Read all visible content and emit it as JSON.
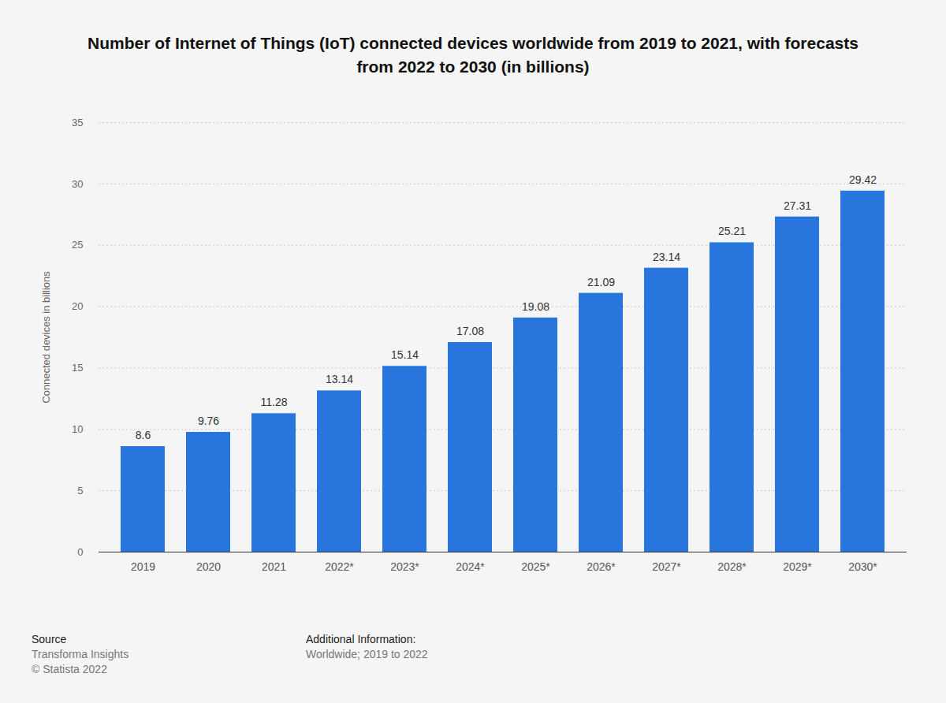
{
  "chart_data": {
    "type": "bar",
    "title": "Number of Internet of Things (IoT) connected devices worldwide from 2019 to 2021, with forecasts from 2022 to 2030 (in billions)",
    "y_label": "Connected devices in billions",
    "categories": [
      "2019",
      "2020",
      "2021",
      "2022*",
      "2023*",
      "2024*",
      "2025*",
      "2026*",
      "2027*",
      "2028*",
      "2029*",
      "2030*"
    ],
    "values": [
      8.6,
      9.76,
      11.28,
      13.14,
      15.14,
      17.08,
      19.08,
      21.09,
      23.14,
      25.21,
      27.31,
      29.42
    ],
    "color": "#2876dd",
    "ylim": [
      0,
      35
    ],
    "yticks": [
      0,
      5,
      10,
      15,
      20,
      25,
      30,
      35
    ],
    "grid": true,
    "data_labels": true,
    "footer": {
      "source_heading": "Source",
      "source": "Transforma Insights",
      "copyright": "© Statista 2022",
      "info_heading": "Additional Information:",
      "info": "Worldwide; 2019 to 2022"
    }
  }
}
